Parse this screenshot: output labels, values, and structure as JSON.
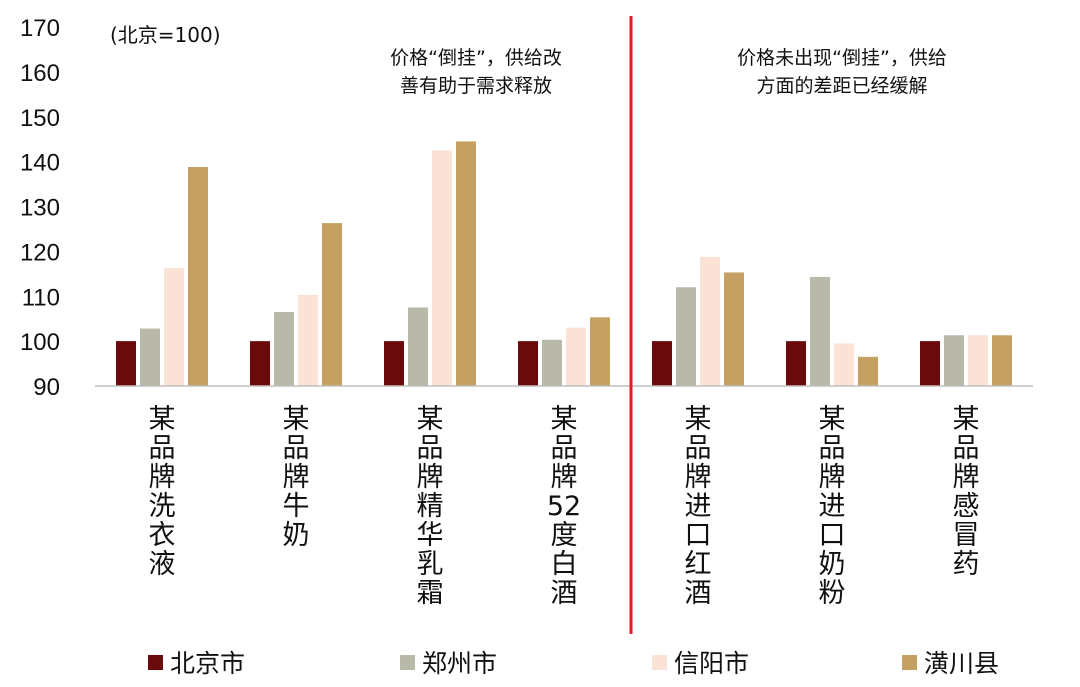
{
  "chart_data": {
    "type": "bar",
    "unit_note": "(北京=100)",
    "categories": [
      "某品牌洗衣液",
      "某品牌牛奶",
      "某品牌精华乳霜",
      "某品牌52度白酒",
      "某品牌进口红酒",
      "某品牌进口奶粉",
      "某品牌感冒药"
    ],
    "series": [
      {
        "name": "北京市",
        "color": "#6b0a0a",
        "values": [
          100,
          100,
          100,
          100,
          100,
          100,
          100
        ]
      },
      {
        "name": "郑州市",
        "color": "#b8b9a8",
        "values": [
          102.8,
          106.5,
          107.5,
          100.3,
          112,
          114.3,
          101.3
        ]
      },
      {
        "name": "信阳市",
        "color": "#fbe2d6",
        "values": [
          116.3,
          110.3,
          142.5,
          103,
          118.8,
          99.5,
          101.3
        ]
      },
      {
        "name": "潢川县",
        "color": "#c4a063",
        "values": [
          138.8,
          126.3,
          144.5,
          105.3,
          115.3,
          96.5,
          101.3
        ]
      }
    ],
    "ylim": [
      90,
      170
    ],
    "yticks": [
      170,
      160,
      150,
      140,
      130,
      120,
      110,
      100,
      90
    ],
    "annotations": [
      [
        "价格“倒挂”，供给改",
        "善有助于需求释放"
      ],
      [
        "价格未出现“倒挂”，供给",
        "方面的差距已经缓解"
      ]
    ],
    "divider_color": "#e31b23",
    "legend_position": "bottom"
  }
}
